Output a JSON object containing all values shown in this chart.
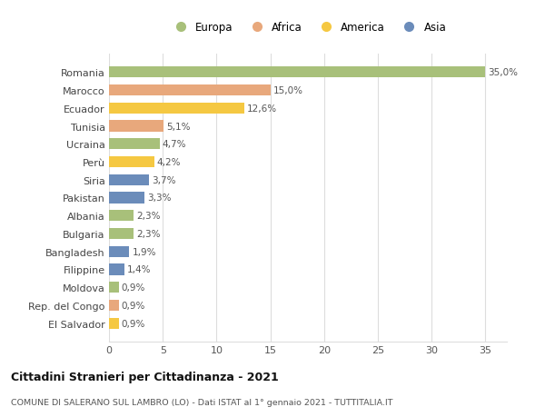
{
  "categories": [
    "Romania",
    "Marocco",
    "Ecuador",
    "Tunisia",
    "Ucraina",
    "Perù",
    "Siria",
    "Pakistan",
    "Albania",
    "Bulgaria",
    "Bangladesh",
    "Filippine",
    "Moldova",
    "Rep. del Congo",
    "El Salvador"
  ],
  "values": [
    35.0,
    15.0,
    12.6,
    5.1,
    4.7,
    4.2,
    3.7,
    3.3,
    2.3,
    2.3,
    1.9,
    1.4,
    0.9,
    0.9,
    0.9
  ],
  "labels": [
    "35,0%",
    "15,0%",
    "12,6%",
    "5,1%",
    "4,7%",
    "4,2%",
    "3,7%",
    "3,3%",
    "2,3%",
    "2,3%",
    "1,9%",
    "1,4%",
    "0,9%",
    "0,9%",
    "0,9%"
  ],
  "colors": [
    "#a8c07a",
    "#e8a87c",
    "#f5c842",
    "#e8a87c",
    "#a8c07a",
    "#f5c842",
    "#6b8cba",
    "#6b8cba",
    "#a8c07a",
    "#a8c07a",
    "#6b8cba",
    "#6b8cba",
    "#a8c07a",
    "#e8a87c",
    "#f5c842"
  ],
  "legend": [
    {
      "label": "Europa",
      "color": "#a8c07a"
    },
    {
      "label": "Africa",
      "color": "#e8a87c"
    },
    {
      "label": "America",
      "color": "#f5c842"
    },
    {
      "label": "Asia",
      "color": "#6b8cba"
    }
  ],
  "title": "Cittadini Stranieri per Cittadinanza - 2021",
  "subtitle": "COMUNE DI SALERANO SUL LAMBRO (LO) - Dati ISTAT al 1° gennaio 2021 - TUTTITALIA.IT",
  "xlim": [
    0,
    37
  ],
  "xticks": [
    0,
    5,
    10,
    15,
    20,
    25,
    30,
    35
  ],
  "background_color": "#ffffff",
  "grid_color": "#dddddd"
}
